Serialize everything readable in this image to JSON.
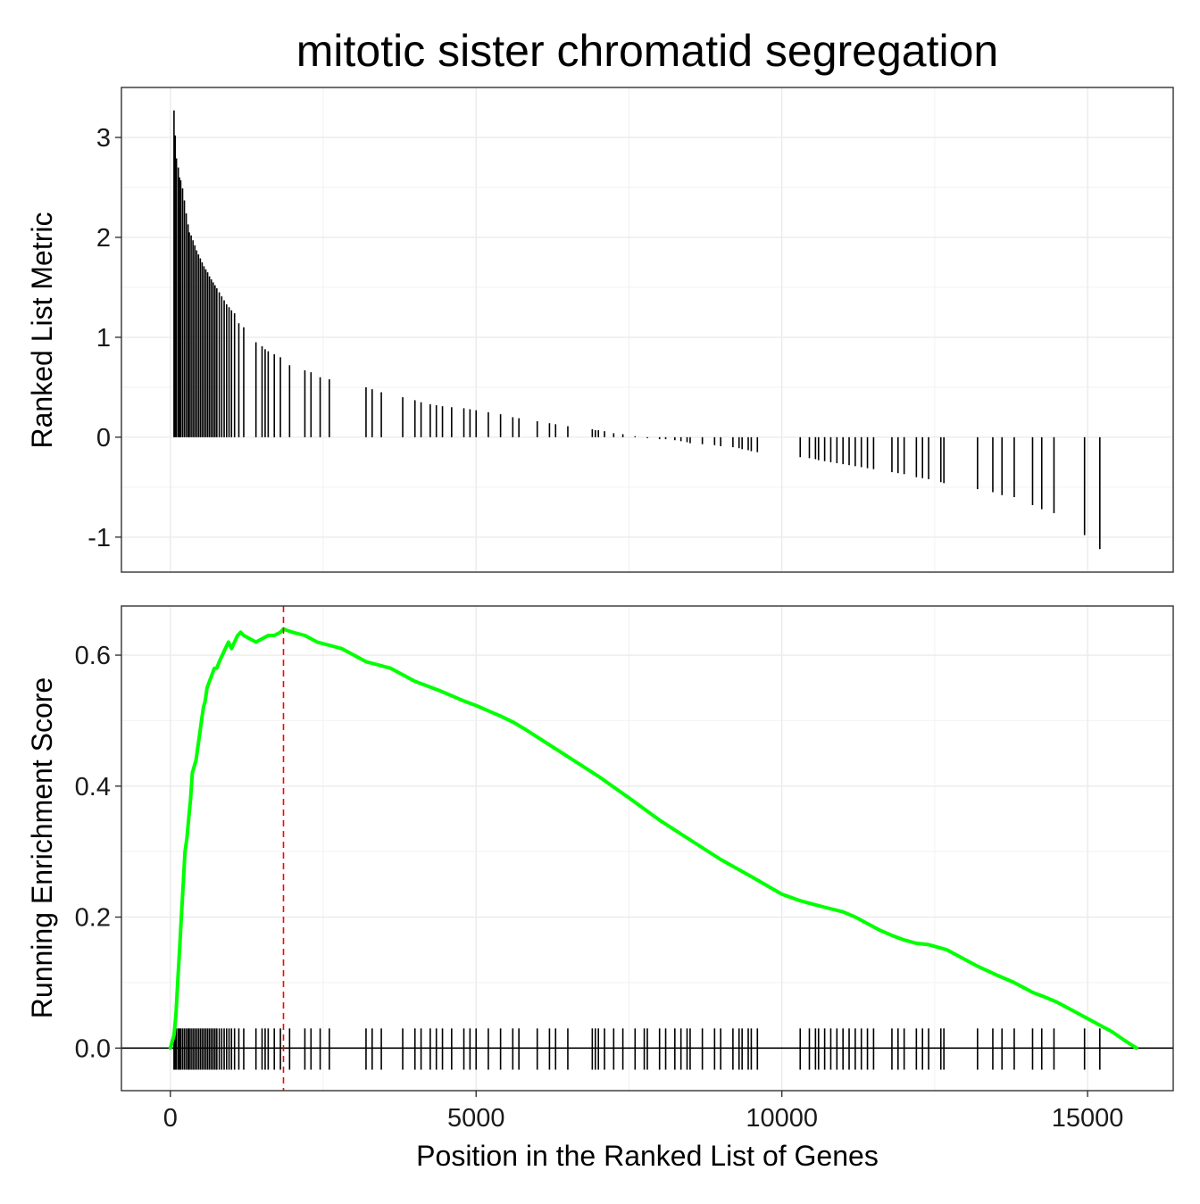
{
  "chart_data": {
    "title": "mitotic sister chromatid segregation",
    "xlabel": "Position in the Ranked List of Genes",
    "xlim": [
      -800,
      16400
    ],
    "xticks": [
      0,
      5000,
      10000,
      15000
    ],
    "xtick_labels": [
      "0",
      "5000",
      "10000",
      "15000"
    ],
    "grid": true,
    "panels": [
      {
        "type": "bar",
        "ylabel": "Ranked List Metric",
        "ylim": [
          -1.35,
          3.5
        ],
        "yticks": [
          -1,
          0,
          1,
          2,
          3
        ],
        "ytick_labels": [
          "-1",
          "0",
          "1",
          "2",
          "3"
        ],
        "bars": [
          [
            60,
            3.27
          ],
          [
            80,
            3.02
          ],
          [
            100,
            2.79
          ],
          [
            130,
            2.7
          ],
          [
            150,
            2.6
          ],
          [
            170,
            2.57
          ],
          [
            200,
            2.49
          ],
          [
            230,
            2.37
          ],
          [
            260,
            2.24
          ],
          [
            290,
            2.13
          ],
          [
            310,
            2.05
          ],
          [
            340,
            2.02
          ],
          [
            370,
            1.97
          ],
          [
            400,
            1.92
          ],
          [
            430,
            1.87
          ],
          [
            460,
            1.83
          ],
          [
            490,
            1.79
          ],
          [
            520,
            1.75
          ],
          [
            550,
            1.71
          ],
          [
            580,
            1.68
          ],
          [
            610,
            1.65
          ],
          [
            640,
            1.61
          ],
          [
            670,
            1.58
          ],
          [
            700,
            1.55
          ],
          [
            730,
            1.52
          ],
          [
            760,
            1.49
          ],
          [
            800,
            1.45
          ],
          [
            840,
            1.41
          ],
          [
            880,
            1.37
          ],
          [
            920,
            1.33
          ],
          [
            960,
            1.3
          ],
          [
            1000,
            1.27
          ],
          [
            1050,
            1.24
          ],
          [
            1120,
            1.14
          ],
          [
            1200,
            1.1
          ],
          [
            1400,
            0.95
          ],
          [
            1500,
            0.91
          ],
          [
            1550,
            0.88
          ],
          [
            1600,
            0.86
          ],
          [
            1700,
            0.83
          ],
          [
            1800,
            0.8
          ],
          [
            1950,
            0.72
          ],
          [
            2200,
            0.67
          ],
          [
            2300,
            0.65
          ],
          [
            2450,
            0.6
          ],
          [
            2600,
            0.58
          ],
          [
            3200,
            0.5
          ],
          [
            3300,
            0.48
          ],
          [
            3450,
            0.45
          ],
          [
            3800,
            0.4
          ],
          [
            4000,
            0.37
          ],
          [
            4100,
            0.35
          ],
          [
            4250,
            0.33
          ],
          [
            4350,
            0.32
          ],
          [
            4450,
            0.31
          ],
          [
            4600,
            0.3
          ],
          [
            4800,
            0.29
          ],
          [
            4900,
            0.28
          ],
          [
            5000,
            0.27
          ],
          [
            5200,
            0.25
          ],
          [
            5400,
            0.23
          ],
          [
            5600,
            0.2
          ],
          [
            5700,
            0.19
          ],
          [
            6000,
            0.16
          ],
          [
            6200,
            0.14
          ],
          [
            6300,
            0.13
          ],
          [
            6500,
            0.11
          ],
          [
            6900,
            0.08
          ],
          [
            6950,
            0.07
          ],
          [
            7000,
            0.07
          ],
          [
            7100,
            0.06
          ],
          [
            7250,
            0.04
          ],
          [
            7400,
            0.03
          ],
          [
            7600,
            0.01
          ],
          [
            7750,
            0.0
          ],
          [
            7800,
            -0.01
          ],
          [
            8000,
            -0.02
          ],
          [
            8100,
            -0.02
          ],
          [
            8250,
            -0.03
          ],
          [
            8350,
            -0.04
          ],
          [
            8450,
            -0.05
          ],
          [
            8500,
            -0.06
          ],
          [
            8700,
            -0.07
          ],
          [
            8900,
            -0.08
          ],
          [
            9000,
            -0.09
          ],
          [
            9200,
            -0.1
          ],
          [
            9300,
            -0.11
          ],
          [
            9350,
            -0.12
          ],
          [
            9450,
            -0.13
          ],
          [
            9500,
            -0.14
          ],
          [
            9600,
            -0.15
          ],
          [
            10300,
            -0.2
          ],
          [
            10450,
            -0.21
          ],
          [
            10550,
            -0.22
          ],
          [
            10600,
            -0.23
          ],
          [
            10700,
            -0.24
          ],
          [
            10800,
            -0.25
          ],
          [
            10900,
            -0.26
          ],
          [
            11000,
            -0.27
          ],
          [
            11100,
            -0.28
          ],
          [
            11200,
            -0.29
          ],
          [
            11300,
            -0.3
          ],
          [
            11400,
            -0.31
          ],
          [
            11500,
            -0.32
          ],
          [
            11800,
            -0.35
          ],
          [
            11900,
            -0.36
          ],
          [
            12000,
            -0.37
          ],
          [
            12200,
            -0.4
          ],
          [
            12300,
            -0.41
          ],
          [
            12400,
            -0.42
          ],
          [
            12600,
            -0.45
          ],
          [
            12650,
            -0.46
          ],
          [
            13200,
            -0.52
          ],
          [
            13450,
            -0.55
          ],
          [
            13600,
            -0.58
          ],
          [
            13800,
            -0.6
          ],
          [
            14100,
            -0.68
          ],
          [
            14250,
            -0.72
          ],
          [
            14450,
            -0.76
          ],
          [
            14950,
            -0.98
          ],
          [
            15200,
            -1.12
          ]
        ]
      },
      {
        "type": "line",
        "ylabel": "Running Enrichment Score",
        "ylim": [
          -0.065,
          0.675
        ],
        "yticks": [
          0.0,
          0.2,
          0.4,
          0.6
        ],
        "ytick_labels": [
          "0.0",
          "0.2",
          "0.4",
          "0.6"
        ],
        "series": [
          {
            "color": "#00ff00",
            "x": [
              0,
              60,
              90,
              120,
              150,
              180,
              210,
              240,
              270,
              300,
              330,
              360,
              390,
              420,
              450,
              480,
              510,
              540,
              570,
              600,
              640,
              680,
              720,
              760,
              800,
              850,
              900,
              950,
              1000,
              1050,
              1100,
              1150,
              1200,
              1300,
              1400,
              1500,
              1600,
              1700,
              1800,
              1850,
              1900,
              2000,
              2200,
              2400,
              2600,
              2800,
              3000,
              3200,
              3400,
              3600,
              3800,
              4000,
              4200,
              4400,
              4600,
              4800,
              5000,
              5200,
              5400,
              5600,
              5800,
              6000,
              6500,
              7000,
              7500,
              8000,
              8500,
              9000,
              9500,
              10000,
              10300,
              10500,
              10700,
              11000,
              11200,
              11400,
              11600,
              11800,
              12000,
              12200,
              12400,
              12700,
              13000,
              13200,
              13500,
              13800,
              14100,
              14300,
              14500,
              14800,
              15000,
              15200,
              15400,
              15600,
              15800
            ],
            "values": [
              0.0,
              0.02,
              0.05,
              0.1,
              0.15,
              0.2,
              0.25,
              0.3,
              0.32,
              0.35,
              0.38,
              0.42,
              0.43,
              0.44,
              0.46,
              0.48,
              0.5,
              0.52,
              0.53,
              0.55,
              0.56,
              0.57,
              0.58,
              0.58,
              0.59,
              0.6,
              0.61,
              0.62,
              0.61,
              0.62,
              0.63,
              0.635,
              0.63,
              0.625,
              0.62,
              0.625,
              0.63,
              0.63,
              0.635,
              0.64,
              0.638,
              0.635,
              0.63,
              0.62,
              0.615,
              0.61,
              0.6,
              0.59,
              0.585,
              0.58,
              0.57,
              0.56,
              0.553,
              0.546,
              0.538,
              0.53,
              0.523,
              0.515,
              0.507,
              0.498,
              0.487,
              0.475,
              0.445,
              0.415,
              0.382,
              0.348,
              0.318,
              0.288,
              0.262,
              0.235,
              0.225,
              0.22,
              0.215,
              0.208,
              0.2,
              0.19,
              0.18,
              0.172,
              0.165,
              0.16,
              0.158,
              0.15,
              0.135,
              0.125,
              0.112,
              0.1,
              0.085,
              0.078,
              0.07,
              0.055,
              0.045,
              0.035,
              0.025,
              0.012,
              0.0
            ]
          }
        ],
        "hline": 0,
        "vline": {
          "x": 1850,
          "color": "#ff0000",
          "style": "dashed"
        },
        "rug": [
          60,
          80,
          100,
          130,
          150,
          170,
          200,
          230,
          260,
          290,
          310,
          340,
          370,
          400,
          430,
          460,
          490,
          520,
          550,
          580,
          610,
          640,
          670,
          700,
          730,
          760,
          800,
          840,
          880,
          920,
          960,
          1000,
          1050,
          1120,
          1200,
          1400,
          1500,
          1550,
          1600,
          1700,
          1800,
          1950,
          2200,
          2300,
          2450,
          2600,
          3200,
          3300,
          3450,
          3800,
          4000,
          4100,
          4250,
          4350,
          4450,
          4600,
          4800,
          4900,
          5000,
          5200,
          5400,
          5600,
          5700,
          6000,
          6200,
          6300,
          6500,
          6900,
          6950,
          7000,
          7100,
          7250,
          7400,
          7600,
          7750,
          7800,
          8000,
          8100,
          8250,
          8350,
          8450,
          8500,
          8700,
          8900,
          9000,
          9200,
          9300,
          9350,
          9450,
          9500,
          9600,
          10300,
          10450,
          10550,
          10600,
          10700,
          10800,
          10900,
          11000,
          11100,
          11200,
          11300,
          11400,
          11500,
          11800,
          11900,
          12000,
          12200,
          12300,
          12400,
          12600,
          12650,
          13200,
          13450,
          13600,
          13800,
          14100,
          14250,
          14450,
          14950,
          15200
        ]
      }
    ]
  }
}
